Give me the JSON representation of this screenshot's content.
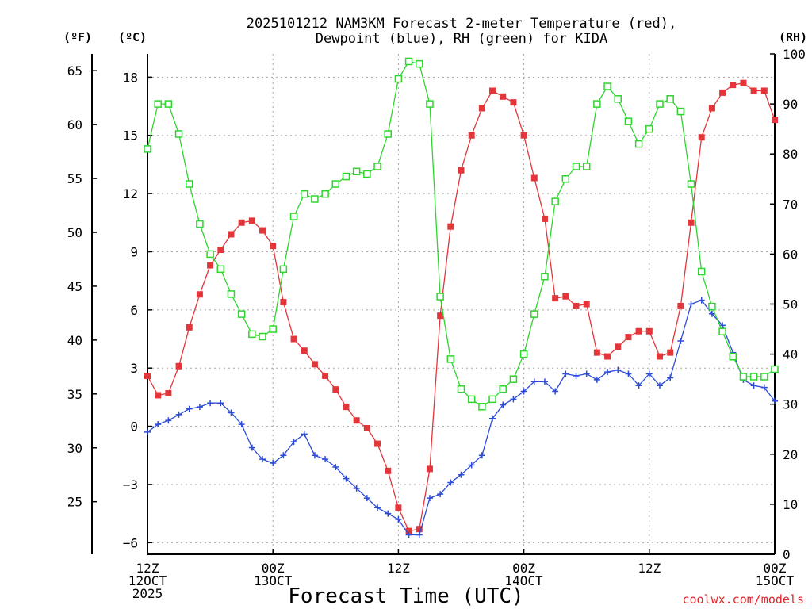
{
  "chart_data": {
    "type": "line",
    "title": "2025101212 NAM3KM Forecast 2-meter Temperature (red),",
    "title_line2": "Dewpoint (blue), RH (green) for KIDA",
    "xlabel": "Forecast Time (UTC)",
    "credit": "coolwx.com/models",
    "unit_labels": {
      "fahrenheit": "(ºF)",
      "celsius": "(ºC)",
      "rh": "(RH)"
    },
    "x_unit": "hours since 12Z 12OCT 2025",
    "xlim": [
      0,
      60
    ],
    "x_ticks": [
      {
        "x": 0,
        "lines": [
          "12Z",
          "12OCT",
          "2025"
        ]
      },
      {
        "x": 12,
        "lines": [
          "00Z",
          "13OCT"
        ]
      },
      {
        "x": 24,
        "lines": [
          "12Z"
        ]
      },
      {
        "x": 36,
        "lines": [
          "00Z",
          "14OCT"
        ]
      },
      {
        "x": 48,
        "lines": [
          "12Z"
        ]
      },
      {
        "x": 60,
        "lines": [
          "00Z",
          "15OCT"
        ]
      }
    ],
    "y_celsius": {
      "lim": [
        -6.6,
        19.2
      ],
      "ticks": [
        -6,
        -3,
        0,
        3,
        6,
        9,
        12,
        15,
        18
      ]
    },
    "y_fahrenheit": {
      "ticks": [
        25,
        30,
        35,
        40,
        45,
        50,
        55,
        60,
        65
      ]
    },
    "y_rh": {
      "lim": [
        0,
        100
      ],
      "ticks": [
        0,
        10,
        20,
        30,
        40,
        50,
        60,
        70,
        80,
        90,
        100
      ]
    },
    "grid": true,
    "series": [
      {
        "name": "2-meter Temperature",
        "axis": "celsius",
        "color": "#e3363b",
        "marker": "filled-square",
        "x": [
          0,
          1,
          2,
          3,
          4,
          5,
          6,
          7,
          8,
          9,
          10,
          11,
          12,
          13,
          14,
          15,
          16,
          17,
          18,
          19,
          20,
          21,
          22,
          23,
          24,
          25,
          26,
          27,
          28,
          29,
          30,
          31,
          32,
          33,
          34,
          35,
          36,
          37,
          38,
          39,
          40,
          41,
          42,
          43,
          44,
          45,
          46,
          47,
          48,
          49,
          50,
          51,
          52,
          53,
          54,
          55,
          56,
          57,
          58,
          59,
          60
        ],
        "y": [
          2.6,
          1.6,
          1.7,
          3.1,
          5.1,
          6.8,
          8.3,
          9.1,
          9.9,
          10.5,
          10.6,
          10.1,
          9.3,
          6.4,
          4.5,
          3.9,
          3.2,
          2.6,
          1.9,
          1.0,
          0.3,
          -0.1,
          -0.9,
          -2.3,
          -4.2,
          -5.4,
          -5.3,
          -2.2,
          5.7,
          10.3,
          13.2,
          15.0,
          16.4,
          17.3,
          17.0,
          16.7,
          15.0,
          12.8,
          10.7,
          6.6,
          6.7,
          6.2,
          6.3,
          3.8,
          3.6,
          4.1,
          4.6,
          4.9,
          4.9,
          3.6,
          3.8,
          6.2,
          10.5,
          14.9,
          16.4,
          17.2,
          17.6,
          17.7,
          17.3,
          17.3,
          15.8
        ]
      },
      {
        "name": "Dewpoint",
        "axis": "celsius",
        "color": "#2b4bd8",
        "marker": "plus",
        "x": [
          0,
          1,
          2,
          3,
          4,
          5,
          6,
          7,
          8,
          9,
          10,
          11,
          12,
          13,
          14,
          15,
          16,
          17,
          18,
          19,
          20,
          21,
          22,
          23,
          24,
          25,
          26,
          27,
          28,
          29,
          30,
          31,
          32,
          33,
          34,
          35,
          36,
          37,
          38,
          39,
          40,
          41,
          42,
          43,
          44,
          45,
          46,
          47,
          48,
          49,
          50,
          51,
          52,
          53,
          54,
          55,
          56,
          57,
          58,
          59,
          60
        ],
        "y": [
          -0.3,
          0.1,
          0.3,
          0.6,
          0.9,
          1.0,
          1.2,
          1.2,
          0.7,
          0.1,
          -1.1,
          -1.7,
          -1.9,
          -1.5,
          -0.8,
          -0.4,
          -1.5,
          -1.7,
          -2.1,
          -2.7,
          -3.2,
          -3.7,
          -4.2,
          -4.5,
          -4.8,
          -5.6,
          -5.6,
          -3.7,
          -3.5,
          -2.9,
          -2.5,
          -2.0,
          -1.5,
          0.4,
          1.1,
          1.4,
          1.8,
          2.3,
          2.3,
          1.8,
          2.7,
          2.6,
          2.7,
          2.4,
          2.8,
          2.9,
          2.7,
          2.1,
          2.7,
          2.1,
          2.5,
          4.4,
          6.3,
          6.5,
          5.8,
          5.2,
          3.8,
          2.4,
          2.1,
          2.0,
          1.3
        ]
      },
      {
        "name": "RH",
        "axis": "rh",
        "color": "#2ed52e",
        "marker": "open-square",
        "x": [
          0,
          1,
          2,
          3,
          4,
          5,
          6,
          7,
          8,
          9,
          10,
          11,
          12,
          13,
          14,
          15,
          16,
          17,
          18,
          19,
          20,
          21,
          22,
          23,
          24,
          25,
          26,
          27,
          28,
          29,
          30,
          31,
          32,
          33,
          34,
          35,
          36,
          37,
          38,
          39,
          40,
          41,
          42,
          43,
          44,
          45,
          46,
          47,
          48,
          49,
          50,
          51,
          52,
          53,
          54,
          55,
          56,
          57,
          58,
          59,
          60
        ],
        "y": [
          81,
          90,
          90,
          84,
          74,
          66,
          60,
          57,
          52,
          48,
          44,
          43.5,
          45,
          57,
          67.5,
          72,
          71,
          72,
          74,
          75.5,
          76.5,
          76,
          77.5,
          84,
          95,
          98.5,
          98,
          90,
          51.5,
          39,
          33,
          31,
          29.5,
          31,
          33,
          35,
          40,
          48,
          55.5,
          70.5,
          75,
          77.5,
          77.5,
          90,
          93.5,
          91,
          86.5,
          82,
          85,
          90,
          91,
          88.5,
          74,
          56.5,
          49.5,
          44.5,
          39.5,
          35.5,
          35.5,
          35.5,
          37
        ]
      }
    ]
  }
}
